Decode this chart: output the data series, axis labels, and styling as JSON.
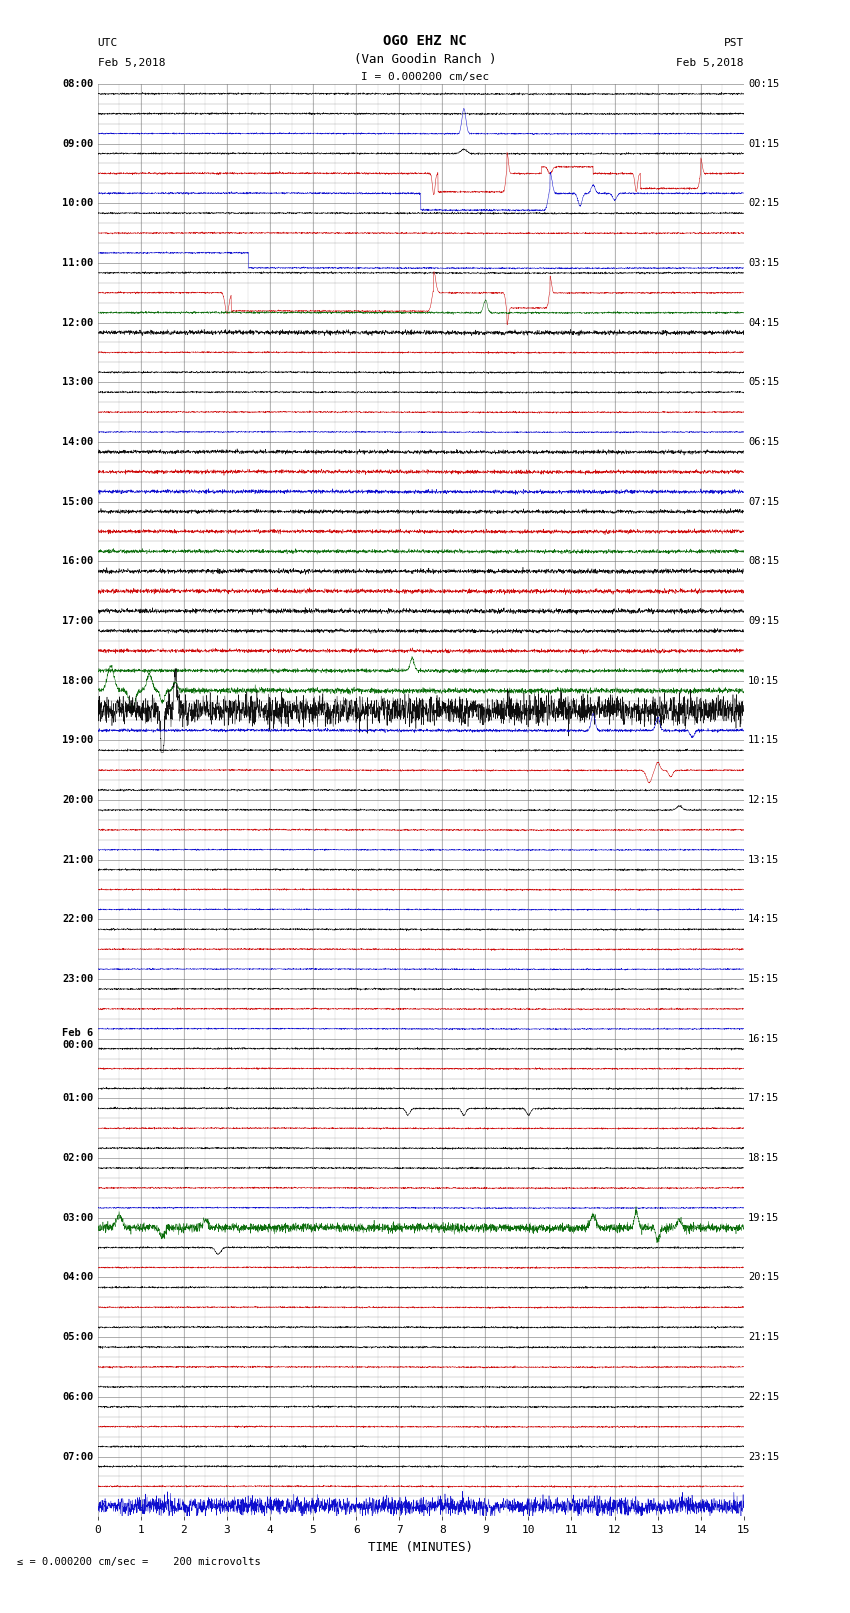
{
  "title_line1": "OGO EHZ NC",
  "title_line2": "(Van Goodin Ranch )",
  "scale_label": "I = 0.000200 cm/sec",
  "bottom_label": "\\u2264 = 0.000200 cm/sec =    200 microvolts",
  "utc_label": "UTC",
  "utc_date": "Feb 5,2018",
  "pst_label": "PST",
  "pst_date": "Feb 5,2018",
  "xlabel": "TIME (MINUTES)",
  "xmin": 0,
  "xmax": 15,
  "background_color": "#ffffff",
  "grid_color": "#777777",
  "trace_color_black": "#000000",
  "trace_color_red": "#cc0000",
  "trace_color_blue": "#0000cc",
  "trace_color_green": "#006600",
  "left_times": [
    "08:00",
    "09:00",
    "10:00",
    "11:00",
    "12:00",
    "13:00",
    "14:00",
    "15:00",
    "16:00",
    "17:00",
    "18:00",
    "19:00",
    "20:00",
    "21:00",
    "22:00",
    "23:00",
    "Feb 6\n00:00",
    "01:00",
    "02:00",
    "03:00",
    "04:00",
    "05:00",
    "06:00",
    "07:00"
  ],
  "right_times": [
    "00:15",
    "01:15",
    "02:15",
    "03:15",
    "04:15",
    "05:15",
    "06:15",
    "07:15",
    "08:15",
    "09:15",
    "10:15",
    "11:15",
    "12:15",
    "13:15",
    "14:15",
    "15:15",
    "16:15",
    "17:15",
    "18:15",
    "19:15",
    "20:15",
    "21:15",
    "22:15",
    "23:15"
  ],
  "num_hour_rows": 24,
  "traces_per_row": 3,
  "fig_width": 8.5,
  "fig_height": 16.13
}
